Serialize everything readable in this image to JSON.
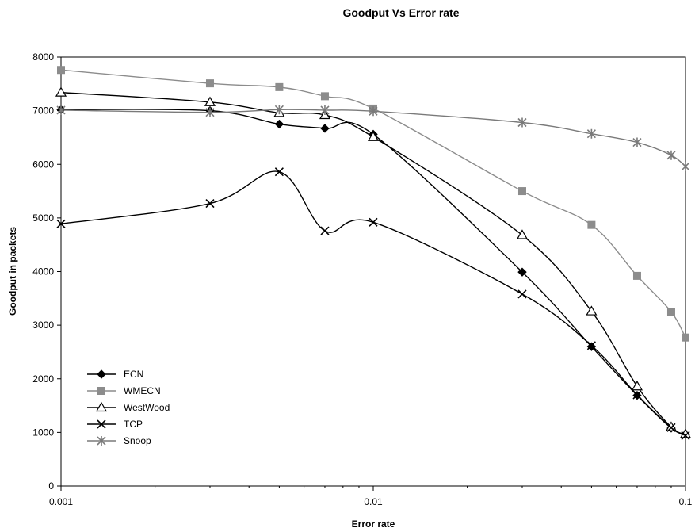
{
  "chart_data": {
    "type": "line",
    "title": "Goodput Vs Error rate",
    "xlabel": "Error rate",
    "ylabel": "Goodput in packets",
    "x_scale": "log",
    "xlim": [
      0.001,
      0.1
    ],
    "ylim": [
      0,
      8000
    ],
    "x_ticks": [
      "0.001",
      "0.01",
      "0.1"
    ],
    "y_ticks": [
      "0",
      "1000",
      "2000",
      "3000",
      "4000",
      "5000",
      "6000",
      "7000",
      "8000"
    ],
    "grid": false,
    "legend_position": "bottom-left",
    "x": [
      0.001,
      0.003,
      0.005,
      0.007,
      0.01,
      0.03,
      0.05,
      0.07,
      0.09,
      0.1
    ],
    "series": [
      {
        "name": "ECN",
        "marker": "diamond",
        "color": "#000000",
        "values": [
          7020,
          7000,
          6750,
          6670,
          6560,
          3990,
          2600,
          1690,
          1080,
          960
        ]
      },
      {
        "name": "WMECN",
        "marker": "square",
        "color": "#8c8c8c",
        "values": [
          7760,
          7510,
          7440,
          7270,
          7040,
          5500,
          4870,
          3920,
          3250,
          2770
        ]
      },
      {
        "name": "WestWood",
        "marker": "triangle",
        "color": "#000000",
        "values": [
          7340,
          7160,
          6960,
          6920,
          6510,
          4680,
          3260,
          1860,
          1100,
          970
        ]
      },
      {
        "name": "TCP",
        "marker": "x",
        "color": "#000000",
        "values": [
          4890,
          5270,
          5860,
          4760,
          4920,
          3580,
          2620,
          1700,
          1090,
          940
        ]
      },
      {
        "name": "Snoop",
        "marker": "star",
        "color": "#7a7a7a",
        "values": [
          7010,
          6970,
          7020,
          7010,
          6990,
          6780,
          6570,
          6410,
          6170,
          5960
        ]
      }
    ]
  }
}
